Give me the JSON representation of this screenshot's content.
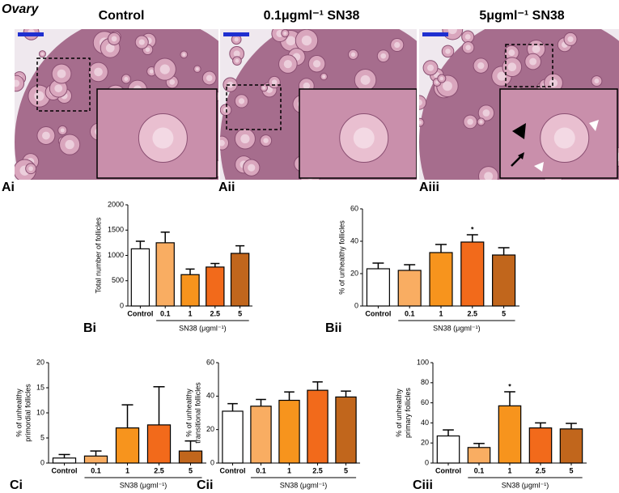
{
  "title": "Ovary",
  "images": [
    {
      "heading": "Control",
      "label": "Ai"
    },
    {
      "heading": "0.1μgml⁻¹ SN38",
      "label": "Aii"
    },
    {
      "heading": "5μgml⁻¹ SN38",
      "label": "Aiii"
    }
  ],
  "chart_data": [
    {
      "type": "bar",
      "panel": "Bi",
      "ylabel": [
        "Total number of follicles"
      ],
      "xlabel": "SN38 (μgml⁻¹)",
      "categories": [
        "Control",
        "0.1",
        "1",
        "2.5",
        "5"
      ],
      "values": [
        1130,
        1250,
        620,
        770,
        1040
      ],
      "errors": [
        150,
        210,
        110,
        70,
        150
      ],
      "colors": [
        "#ffffff",
        "#f9ad62",
        "#f7941d",
        "#f26a1b",
        "#c1661c"
      ],
      "ylim": [
        0,
        2000
      ],
      "yticks": [
        0,
        500,
        1000,
        1500,
        2000
      ]
    },
    {
      "type": "bar",
      "panel": "Bii",
      "ylabel": [
        "% of unhealthy follicles"
      ],
      "xlabel": "SN38 (μgml⁻¹)",
      "categories": [
        "Control",
        "0.1",
        "1",
        "2.5",
        "5"
      ],
      "values": [
        23,
        22,
        33,
        39.5,
        31.5
      ],
      "errors": [
        3.5,
        3.5,
        5,
        4.5,
        4.5
      ],
      "colors": [
        "#ffffff",
        "#f9ad62",
        "#f7941d",
        "#f26a1b",
        "#c1661c"
      ],
      "ylim": [
        0,
        60
      ],
      "yticks": [
        0,
        20,
        40,
        60
      ],
      "annotations": [
        {
          "text": "*",
          "category": "2.5"
        }
      ]
    },
    {
      "type": "bar",
      "panel": "Ci",
      "ylabel": [
        "% of unhealthy",
        "primordial follicles"
      ],
      "xlabel": "SN38 (μgml⁻¹)",
      "categories": [
        "Control",
        "0.1",
        "1",
        "2.5",
        "5"
      ],
      "values": [
        1,
        1.4,
        7,
        7.6,
        2.4
      ],
      "errors": [
        0.7,
        1,
        4.6,
        7.6,
        2
      ],
      "colors": [
        "#ffffff",
        "#f9ad62",
        "#f7941d",
        "#f26a1b",
        "#c1661c"
      ],
      "ylim": [
        0,
        20
      ],
      "yticks": [
        0,
        5,
        10,
        15,
        20
      ]
    },
    {
      "type": "bar",
      "panel": "Cii",
      "ylabel": [
        "% of unhealthy",
        "transitional follicles"
      ],
      "xlabel": "SN38 (μgml⁻¹)",
      "categories": [
        "Control",
        "0.1",
        "1",
        "2.5",
        "5"
      ],
      "values": [
        31,
        34,
        37.5,
        43.5,
        39.5
      ],
      "errors": [
        4.5,
        4,
        5,
        5,
        3.5
      ],
      "colors": [
        "#ffffff",
        "#f9ad62",
        "#f7941d",
        "#f26a1b",
        "#c1661c"
      ],
      "ylim": [
        0,
        60
      ],
      "yticks": [
        0,
        20,
        40,
        60
      ]
    },
    {
      "type": "bar",
      "panel": "Ciii",
      "ylabel": [
        "% of unhealthy",
        "primary follicles"
      ],
      "xlabel": "SN38 (μgml⁻¹)",
      "categories": [
        "Control",
        "0.1",
        "1",
        "2.5",
        "5"
      ],
      "values": [
        27,
        15.5,
        57,
        35,
        34
      ],
      "errors": [
        6,
        4,
        14,
        5,
        5.5
      ],
      "colors": [
        "#ffffff",
        "#f9ad62",
        "#f7941d",
        "#f26a1b",
        "#c1661c"
      ],
      "ylim": [
        0,
        100
      ],
      "yticks": [
        0,
        20,
        40,
        60,
        80,
        100
      ],
      "annotations": [
        {
          "text": "*",
          "category": "1"
        }
      ]
    }
  ]
}
